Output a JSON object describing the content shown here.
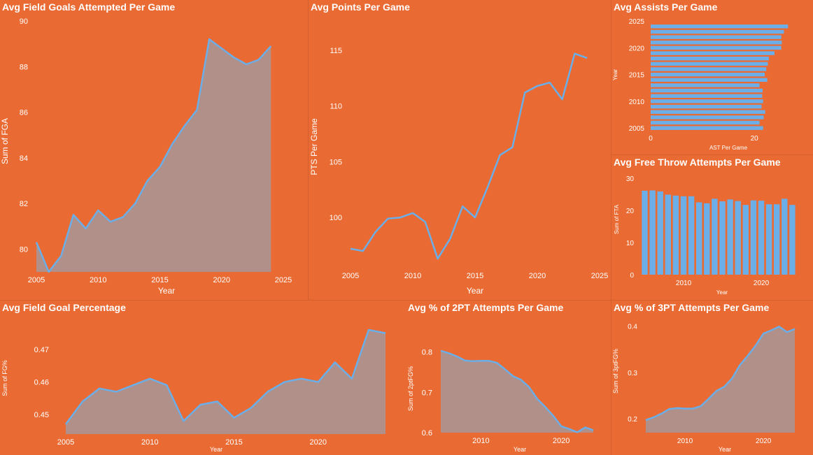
{
  "colors": {
    "background": "#E96B33",
    "line": "#6BAEE8",
    "area": "#B1908A",
    "bar": "#6BAEE8",
    "text": "#ffffff"
  },
  "chart_data": [
    {
      "type": "area",
      "title": "Avg Field Goals Attempted Per Game",
      "xlabel": "Year",
      "ylabel": "Sum of FGA",
      "x": [
        2005,
        2006,
        2007,
        2008,
        2009,
        2010,
        2011,
        2012,
        2013,
        2014,
        2015,
        2016,
        2017,
        2018,
        2019,
        2020,
        2021,
        2022,
        2023,
        2024
      ],
      "values": [
        80.3,
        79.0,
        79.7,
        81.5,
        80.9,
        81.7,
        81.2,
        81.4,
        82.0,
        83.0,
        83.6,
        84.6,
        85.4,
        86.1,
        89.2,
        88.8,
        88.4,
        88.1,
        88.3,
        88.9
      ],
      "xlim": [
        2005,
        2025
      ],
      "ylim": [
        79,
        90
      ],
      "xticks": [
        2005,
        2010,
        2015,
        2020,
        2025
      ],
      "yticks": [
        80,
        82,
        84,
        86,
        88,
        90
      ],
      "grid": false
    },
    {
      "type": "line",
      "title": "Avg Points Per Game",
      "xlabel": "Year",
      "ylabel": "PTS Per Game",
      "x": [
        2005,
        2006,
        2007,
        2008,
        2009,
        2010,
        2011,
        2012,
        2013,
        2014,
        2015,
        2016,
        2017,
        2018,
        2019,
        2020,
        2021,
        2022,
        2023,
        2024
      ],
      "values": [
        97.2,
        97.0,
        98.7,
        99.9,
        100.0,
        100.4,
        99.6,
        96.3,
        98.1,
        101.0,
        100.0,
        102.7,
        105.6,
        106.3,
        111.2,
        111.8,
        112.1,
        110.6,
        114.7,
        114.3
      ],
      "xlim": [
        2005,
        2025
      ],
      "ylim": [
        95.5,
        116.5
      ],
      "xticks": [
        2005,
        2010,
        2015,
        2020,
        2025
      ],
      "yticks": [
        100,
        105,
        110,
        115
      ],
      "grid": false
    },
    {
      "type": "bar",
      "orientation": "horizontal",
      "title": "Avg Assists Per Game",
      "xlabel": "AST Per Game",
      "ylabel": "Year",
      "categories": [
        2005,
        2006,
        2007,
        2008,
        2009,
        2010,
        2011,
        2012,
        2013,
        2014,
        2015,
        2016,
        2017,
        2018,
        2019,
        2020,
        2021,
        2022,
        2023,
        2024
      ],
      "values": [
        21.7,
        21.0,
        21.8,
        22.1,
        21.4,
        21.7,
        21.5,
        21.6,
        21.0,
        22.5,
        22.0,
        22.3,
        22.6,
        22.8,
        23.9,
        25.2,
        25.3,
        25.2,
        25.7,
        26.5
      ],
      "xlim": [
        0,
        27
      ],
      "xticks": [
        0,
        20
      ],
      "yticks": [
        2005,
        2010,
        2015,
        2020,
        2025
      ],
      "grid": false
    },
    {
      "type": "bar",
      "title": "Avg Free Throw Attempts Per Game",
      "xlabel": "Year",
      "ylabel": "Sum of FTA",
      "categories": [
        2005,
        2006,
        2007,
        2008,
        2009,
        2010,
        2011,
        2012,
        2013,
        2014,
        2015,
        2016,
        2017,
        2018,
        2019,
        2020,
        2021,
        2022,
        2023,
        2024
      ],
      "values": [
        26.1,
        26.2,
        25.9,
        24.9,
        24.6,
        24.4,
        24.4,
        22.5,
        22.2,
        23.6,
        22.8,
        23.4,
        22.9,
        21.7,
        23.1,
        23.0,
        21.9,
        21.9,
        23.6,
        21.7
      ],
      "ylim": [
        0,
        30
      ],
      "yticks": [
        0,
        10,
        20,
        30
      ],
      "xticks": [
        2010,
        2020
      ],
      "grid": false
    },
    {
      "type": "area",
      "title": "Avg Field Goal Percentage",
      "xlabel": "Year",
      "ylabel": "Sum of FG%",
      "x": [
        2005,
        2006,
        2007,
        2008,
        2009,
        2010,
        2011,
        2012,
        2013,
        2014,
        2015,
        2016,
        2017,
        2018,
        2019,
        2020,
        2021,
        2022,
        2023,
        2024
      ],
      "values": [
        0.447,
        0.454,
        0.458,
        0.457,
        0.459,
        0.461,
        0.459,
        0.448,
        0.453,
        0.454,
        0.449,
        0.452,
        0.457,
        0.46,
        0.461,
        0.46,
        0.466,
        0.461,
        0.476,
        0.475
      ],
      "xlim": [
        2004.5,
        2024.5
      ],
      "ylim": [
        0.444,
        0.479
      ],
      "xticks": [
        2005,
        2010,
        2015,
        2020
      ],
      "yticks": [
        0.45,
        0.46,
        0.47
      ],
      "grid": false
    },
    {
      "type": "area",
      "title": "Avg % of 2PT Attempts Per Game",
      "xlabel": "Year",
      "ylabel": "Sum of 2ptFG%",
      "x": [
        2005,
        2006,
        2007,
        2008,
        2009,
        2010,
        2011,
        2012,
        2013,
        2014,
        2015,
        2016,
        2017,
        2018,
        2019,
        2020,
        2021,
        2022,
        2023,
        2024
      ],
      "values": [
        0.803,
        0.797,
        0.789,
        0.779,
        0.777,
        0.778,
        0.778,
        0.773,
        0.757,
        0.74,
        0.731,
        0.713,
        0.684,
        0.664,
        0.642,
        0.616,
        0.609,
        0.601,
        0.613,
        0.606
      ],
      "xlim": [
        2005,
        2024
      ],
      "ylim": [
        0.6,
        0.82
      ],
      "xticks": [
        2010,
        2020
      ],
      "yticks": [
        0.6,
        0.7,
        0.8
      ],
      "grid": false
    },
    {
      "type": "area",
      "title": "Avg % of 3PT Attempts Per Game",
      "xlabel": "Year",
      "ylabel": "Sum of 3ptFG%",
      "x": [
        2005,
        2006,
        2007,
        2008,
        2009,
        2010,
        2011,
        2012,
        2013,
        2014,
        2015,
        2016,
        2017,
        2018,
        2019,
        2020,
        2021,
        2022,
        2023,
        2024
      ],
      "values": [
        0.197,
        0.203,
        0.211,
        0.221,
        0.223,
        0.222,
        0.222,
        0.227,
        0.243,
        0.26,
        0.269,
        0.287,
        0.316,
        0.336,
        0.358,
        0.384,
        0.391,
        0.399,
        0.387,
        0.394
      ],
      "xlim": [
        2005,
        2024
      ],
      "ylim": [
        0.17,
        0.41
      ],
      "xticks": [
        2010,
        2020
      ],
      "yticks": [
        0.2,
        0.3,
        0.4
      ],
      "grid": false
    }
  ]
}
